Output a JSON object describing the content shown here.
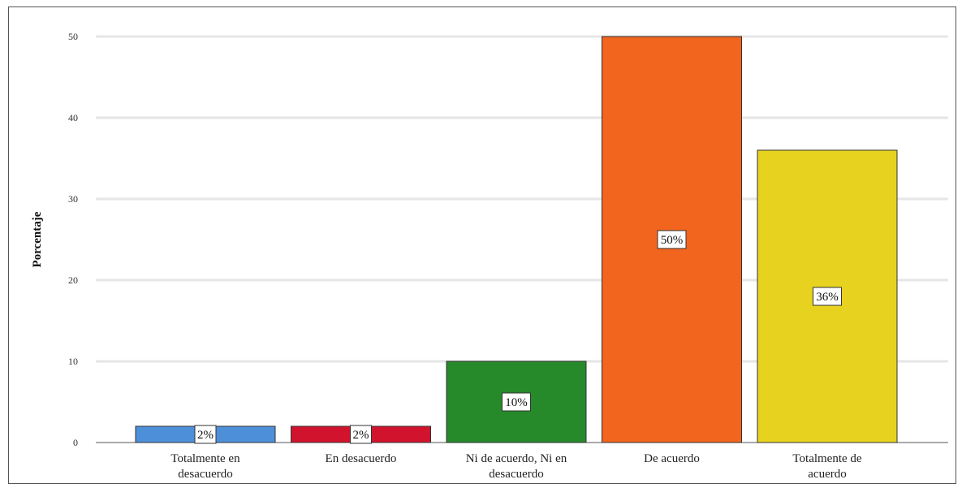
{
  "chart_data": {
    "type": "bar",
    "title": "",
    "xlabel": "",
    "ylabel": "Porcentaje",
    "ylim": [
      0,
      50
    ],
    "yticks": [
      0,
      10,
      20,
      30,
      40,
      50
    ],
    "grid": true,
    "categories": [
      [
        "Totalmente en",
        "desacuerdo"
      ],
      [
        "En desacuerdo"
      ],
      [
        "Ni de acuerdo, Ni en",
        "desacuerdo"
      ],
      [
        "De acuerdo"
      ],
      [
        "Totalmente de",
        "acuerdo"
      ]
    ],
    "values": [
      2,
      2,
      10,
      50,
      36
    ],
    "data_labels": [
      "2%",
      "2%",
      "10%",
      "50%",
      "36%"
    ],
    "colors": [
      "#4d8fd9",
      "#d2132e",
      "#268a2b",
      "#f2651e",
      "#e6d21f"
    ]
  }
}
